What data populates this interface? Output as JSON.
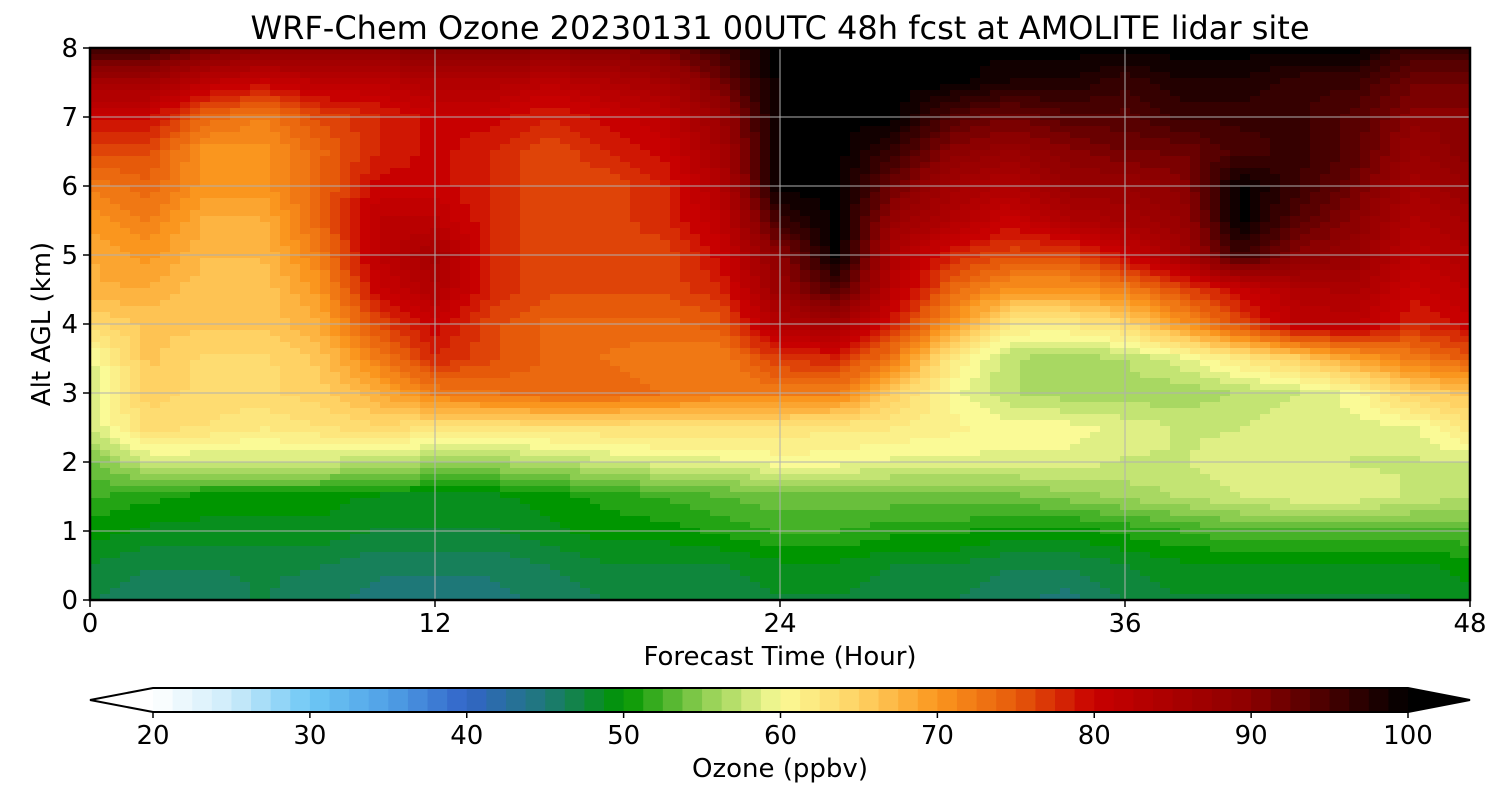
{
  "chart_data": {
    "type": "heatmap",
    "title": "WRF-Chem Ozone  20230131 00UTC 48h fcst at AMOLITE lidar site",
    "xlabel": "Forecast Time (Hour)",
    "ylabel": "Alt AGL (km)",
    "xlim": [
      0,
      48
    ],
    "ylim": [
      0,
      8
    ],
    "x_ticks": [
      "0",
      "12",
      "24",
      "36",
      "48"
    ],
    "y_ticks": [
      "0",
      "1",
      "2",
      "3",
      "4",
      "5",
      "6",
      "7",
      "8"
    ],
    "grid": true,
    "colorbar": {
      "label": "Ozone  (ppbv)",
      "range": [
        20,
        100
      ],
      "ticks": [
        "20",
        "30",
        "40",
        "50",
        "60",
        "70",
        "80",
        "90",
        "100"
      ],
      "extend": "both",
      "under_color": "#ffffff",
      "over_color": "#000000"
    },
    "x": [
      0,
      2,
      4,
      6,
      8,
      10,
      12,
      14,
      16,
      18,
      20,
      22,
      24,
      26,
      28,
      30,
      32,
      34,
      36,
      38,
      40,
      42,
      44,
      46,
      48
    ],
    "y": [
      0,
      0.5,
      1,
      1.5,
      2,
      2.5,
      3,
      3.5,
      4,
      4.5,
      5,
      5.5,
      6,
      6.5,
      7,
      7.5,
      8
    ],
    "z": [
      [
        47,
        46,
        46,
        47,
        46,
        45,
        45,
        45,
        46,
        47,
        47,
        47,
        48,
        48,
        47,
        47,
        46,
        45,
        47,
        48,
        48,
        48,
        48,
        48,
        49
      ],
      [
        48,
        47,
        47,
        47,
        47,
        46,
        46,
        46,
        47,
        48,
        48,
        48,
        49,
        49,
        48,
        48,
        47,
        47,
        48,
        49,
        49,
        49,
        49,
        49,
        50
      ],
      [
        50,
        49,
        49,
        49,
        49,
        48,
        48,
        48,
        49,
        50,
        50,
        51,
        52,
        52,
        51,
        51,
        50,
        50,
        51,
        52,
        53,
        53,
        53,
        53,
        53
      ],
      [
        52,
        51,
        50,
        50,
        50,
        49,
        49,
        49,
        50,
        51,
        52,
        53,
        54,
        54,
        54,
        54,
        54,
        55,
        56,
        57,
        58,
        59,
        59,
        58,
        57
      ],
      [
        54,
        58,
        58,
        58,
        58,
        57,
        56,
        56,
        57,
        58,
        59,
        59,
        60,
        60,
        59,
        59,
        59,
        59,
        58,
        58,
        59,
        59,
        58,
        58,
        58
      ],
      [
        58,
        64,
        63,
        62,
        63,
        64,
        63,
        63,
        63,
        63,
        63,
        63,
        63,
        62,
        62,
        61,
        60,
        60,
        59,
        58,
        58,
        59,
        59,
        59,
        63
      ],
      [
        58,
        65,
        64,
        64,
        65,
        68,
        72,
        73,
        74,
        74,
        73,
        72,
        72,
        72,
        65,
        60,
        57,
        56,
        56,
        56,
        57,
        58,
        60,
        65,
        66
      ],
      [
        59,
        66,
        64,
        64,
        66,
        72,
        78,
        76,
        74,
        73,
        72,
        72,
        77,
        78,
        72,
        62,
        57,
        56,
        57,
        59,
        62,
        65,
        69,
        72,
        75
      ],
      [
        64,
        66,
        66,
        66,
        68,
        76,
        80,
        76,
        74,
        74,
        74,
        75,
        84,
        86,
        78,
        70,
        62,
        62,
        64,
        70,
        76,
        82,
        82,
        78,
        80
      ],
      [
        68,
        68,
        66,
        66,
        70,
        80,
        84,
        78,
        76,
        76,
        76,
        78,
        88,
        95,
        82,
        74,
        70,
        70,
        72,
        76,
        80,
        84,
        85,
        80,
        82
      ],
      [
        68,
        70,
        67,
        67,
        72,
        82,
        86,
        78,
        76,
        76,
        76,
        80,
        90,
        100,
        84,
        78,
        76,
        76,
        80,
        86,
        96,
        90,
        88,
        82,
        84
      ],
      [
        70,
        72,
        68,
        68,
        74,
        82,
        82,
        78,
        76,
        76,
        78,
        82,
        96,
        100,
        88,
        84,
        80,
        84,
        86,
        88,
        100,
        94,
        90,
        84,
        86
      ],
      [
        72,
        74,
        70,
        70,
        74,
        80,
        80,
        78,
        76,
        76,
        78,
        84,
        100,
        100,
        92,
        86,
        84,
        88,
        88,
        90,
        100,
        96,
        92,
        86,
        88
      ],
      [
        76,
        76,
        70,
        70,
        74,
        78,
        80,
        78,
        76,
        78,
        80,
        86,
        100,
        100,
        96,
        90,
        88,
        90,
        92,
        92,
        95,
        96,
        94,
        88,
        90
      ],
      [
        80,
        80,
        74,
        72,
        76,
        78,
        80,
        80,
        78,
        80,
        82,
        88,
        100,
        100,
        100,
        94,
        92,
        94,
        94,
        96,
        96,
        96,
        94,
        90,
        90
      ],
      [
        86,
        86,
        82,
        80,
        82,
        82,
        84,
        84,
        82,
        84,
        86,
        92,
        100,
        100,
        100,
        100,
        98,
        98,
        96,
        98,
        98,
        96,
        96,
        92,
        92
      ],
      [
        96,
        96,
        92,
        90,
        90,
        90,
        90,
        90,
        90,
        90,
        92,
        96,
        100,
        100,
        100,
        100,
        100,
        100,
        100,
        100,
        100,
        100,
        100,
        96,
        96
      ]
    ]
  }
}
